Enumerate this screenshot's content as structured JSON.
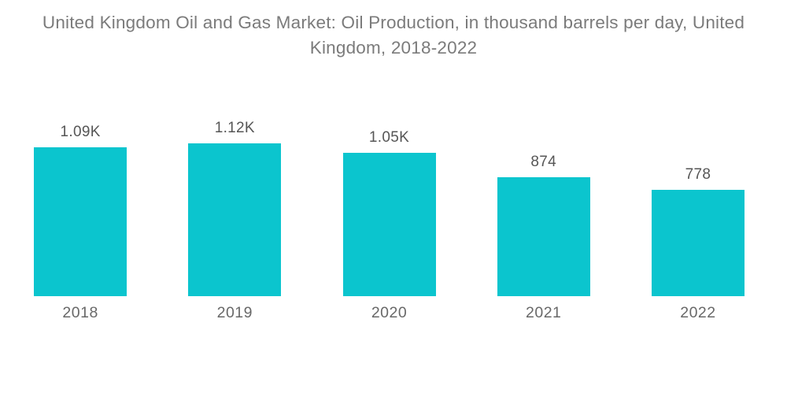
{
  "header": {
    "title_line1": "United Kingdom Oil and Gas Market: Oil Production, in thousand barrels per day, United",
    "title_line2": "Kingdom, 2018-2022"
  },
  "chart_data": {
    "type": "bar",
    "title": "United Kingdom Oil and Gas Market: Oil Production, in thousand barrels per day, United Kingdom, 2018-2022",
    "categories": [
      "2018",
      "2019",
      "2020",
      "2021",
      "2022"
    ],
    "values": [
      1090,
      1120,
      1050,
      874,
      778
    ],
    "value_labels": [
      "1.09K",
      "1.12K",
      "1.05K",
      "874",
      "778"
    ],
    "xlabel": "",
    "ylabel": "",
    "ylim": [
      0,
      1120
    ],
    "grid": false,
    "legend": false,
    "bar_color": "#0BC5CE",
    "title_color": "#7B7B7B",
    "value_label_color": "#565656",
    "category_label_color": "#686868",
    "background_color": "#FFFFFF"
  }
}
